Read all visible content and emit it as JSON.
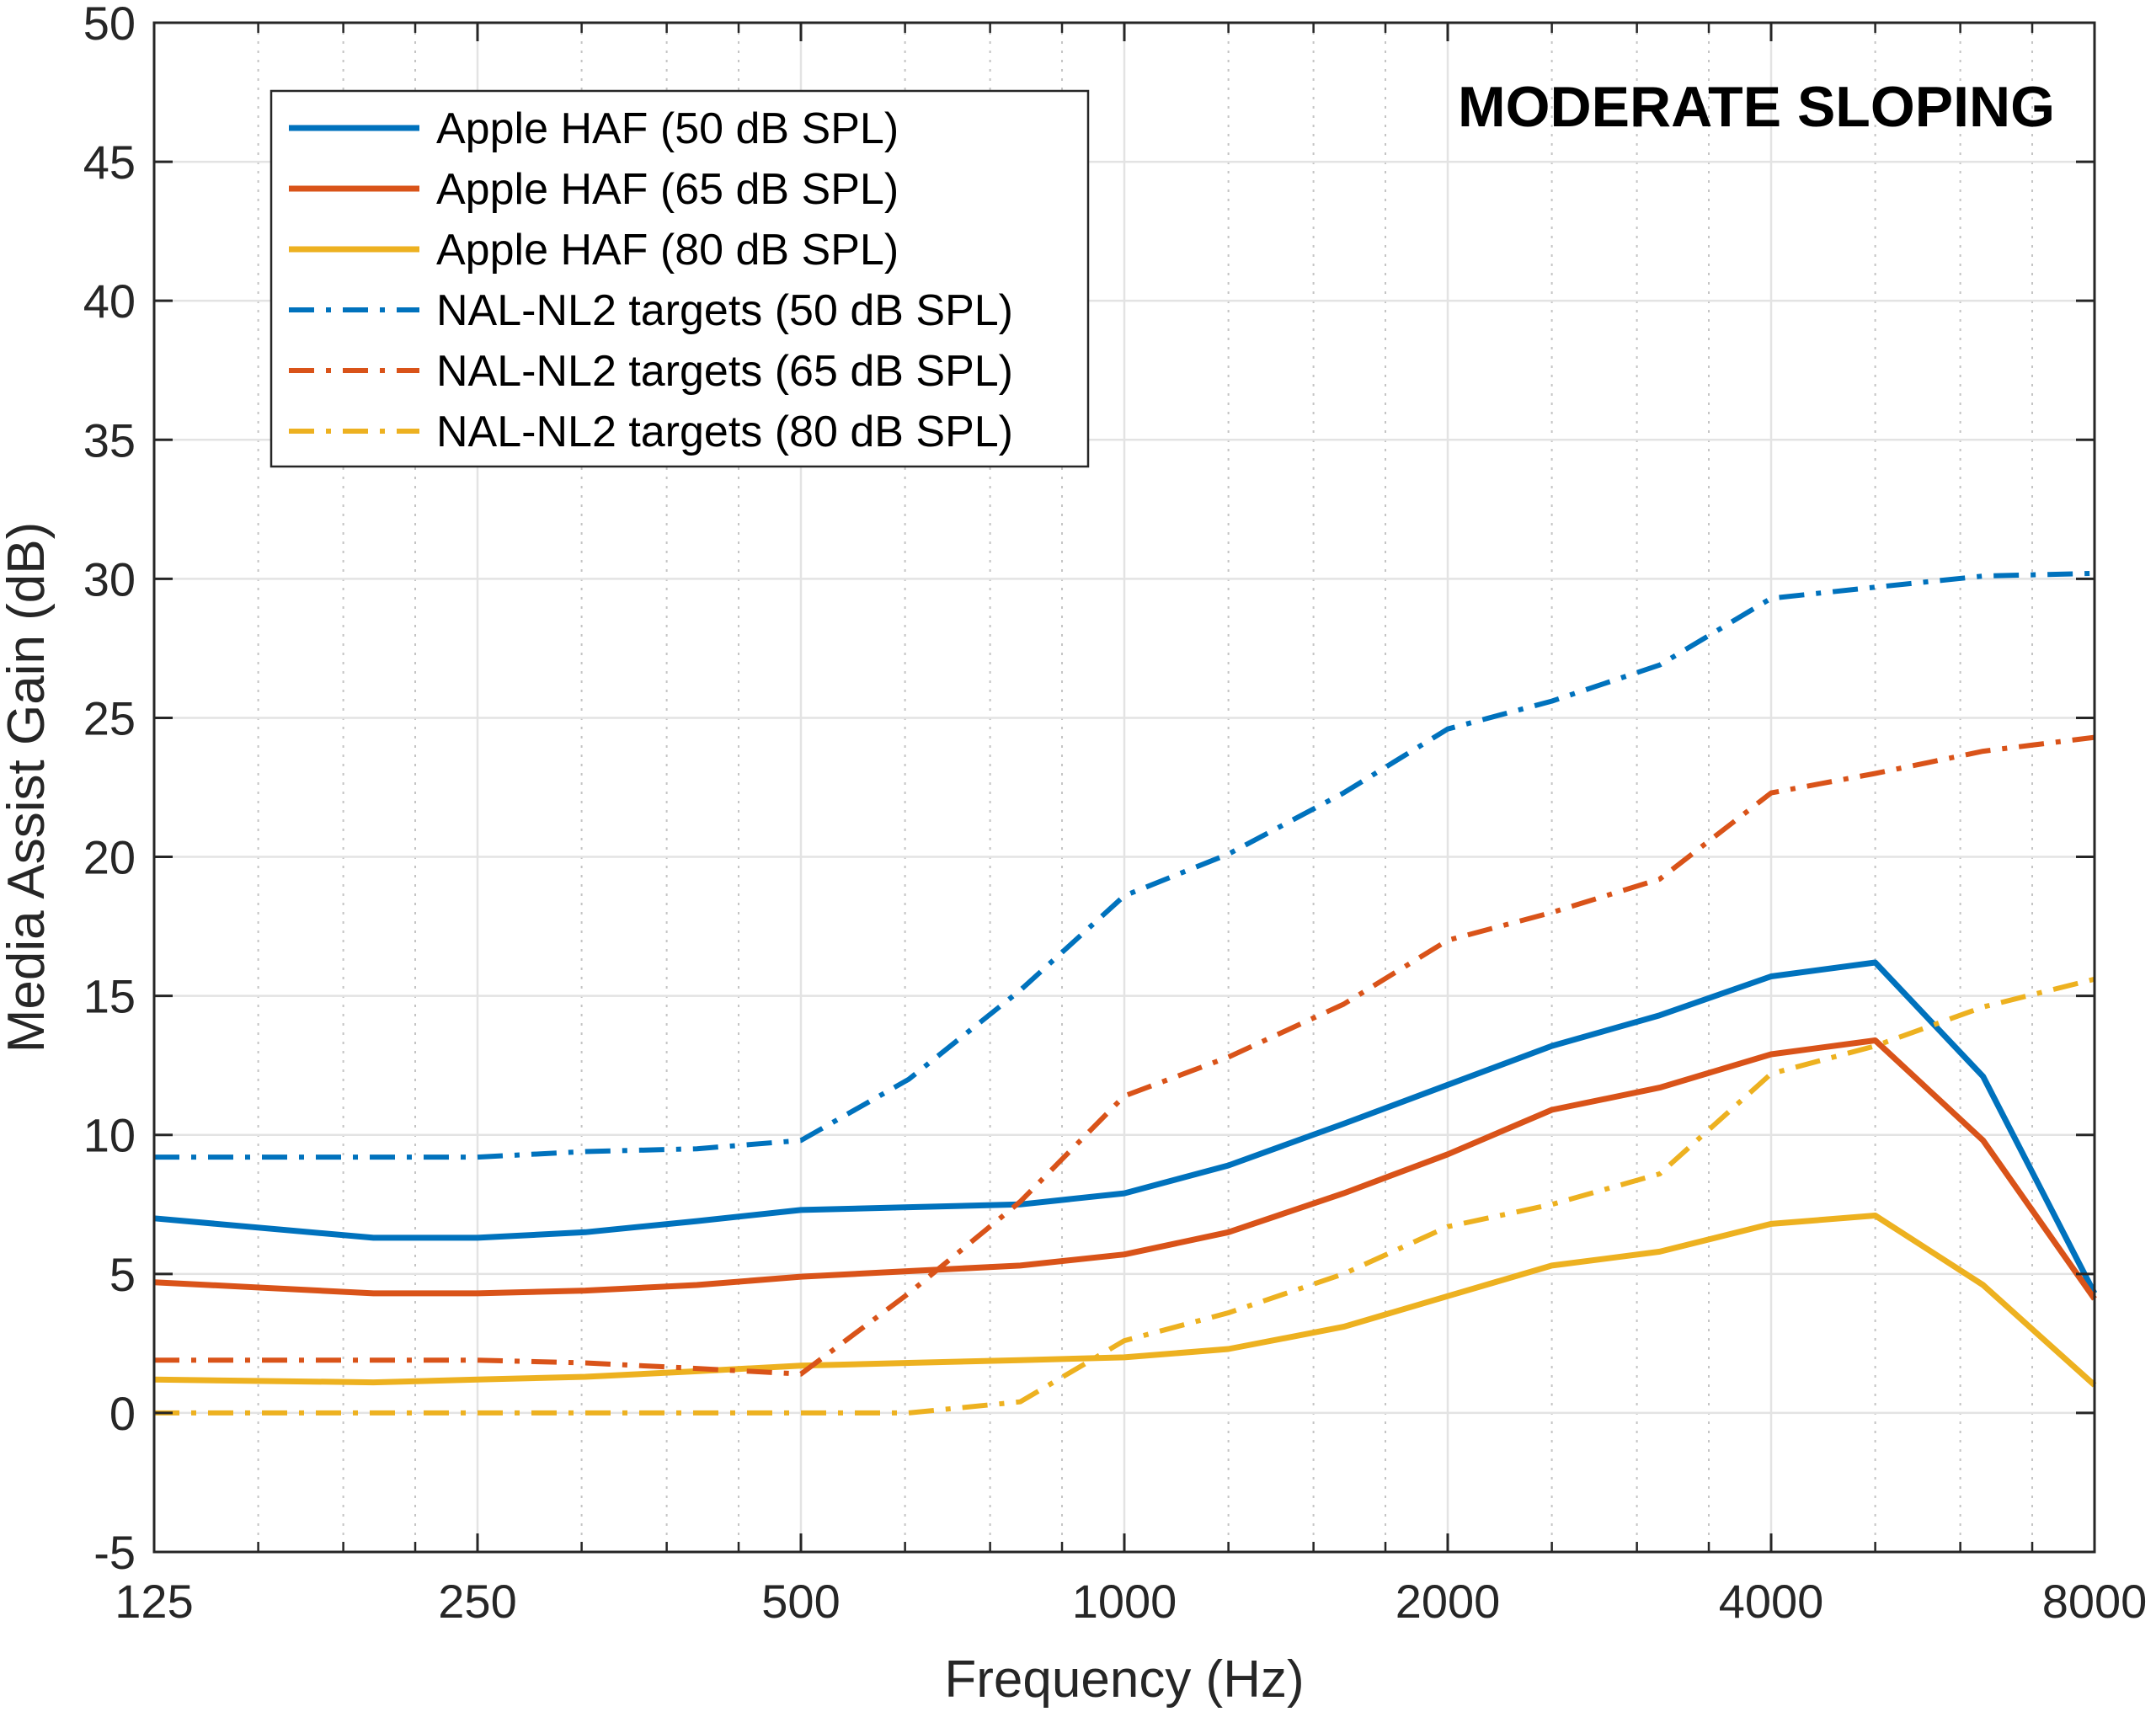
{
  "chart_data": {
    "type": "line",
    "title": "MODERATE SLOPING",
    "xlabel": "Frequency (Hz)",
    "ylabel": "Media Assist Gain (dB)",
    "x_scale": "log2",
    "xlim": [
      125,
      8000
    ],
    "ylim": [
      -5,
      50
    ],
    "x_ticks": [
      125,
      250,
      500,
      1000,
      2000,
      4000,
      8000
    ],
    "x_tick_labels": [
      "125",
      "250",
      "500",
      "1000",
      "2000",
      "4000",
      "8000"
    ],
    "y_ticks": [
      -5,
      0,
      5,
      10,
      15,
      20,
      25,
      30,
      35,
      40,
      45,
      50
    ],
    "y_tick_labels": [
      "-5",
      "0",
      "5",
      "10",
      "15",
      "20",
      "25",
      "30",
      "35",
      "40",
      "45",
      "50"
    ],
    "grid": true,
    "legend_position": "top-left",
    "series": [
      {
        "name": "Apple HAF (50 dB SPL)",
        "color": "#0072BD",
        "style": "solid",
        "x": [
          125,
          200,
          250,
          315,
          400,
          500,
          630,
          800,
          1000,
          1250,
          1600,
          2000,
          2500,
          3150,
          4000,
          5000,
          6300,
          8000
        ],
        "y": [
          7.0,
          6.3,
          6.3,
          6.5,
          6.9,
          7.3,
          7.4,
          7.5,
          7.9,
          8.9,
          10.4,
          11.8,
          13.2,
          14.3,
          15.7,
          16.2,
          12.1,
          4.3
        ]
      },
      {
        "name": "Apple HAF (65 dB SPL)",
        "color": "#D95319",
        "style": "solid",
        "x": [
          125,
          200,
          250,
          315,
          400,
          500,
          630,
          800,
          1000,
          1250,
          1600,
          2000,
          2500,
          3150,
          4000,
          5000,
          6300,
          8000
        ],
        "y": [
          4.7,
          4.3,
          4.3,
          4.4,
          4.6,
          4.9,
          5.1,
          5.3,
          5.7,
          6.5,
          7.9,
          9.3,
          10.9,
          11.7,
          12.9,
          13.4,
          9.8,
          4.1
        ]
      },
      {
        "name": "Apple HAF (80 dB SPL)",
        "color": "#EDB120",
        "style": "solid",
        "x": [
          125,
          200,
          250,
          315,
          400,
          500,
          630,
          800,
          1000,
          1250,
          1600,
          2000,
          2500,
          3150,
          4000,
          5000,
          6300,
          8000
        ],
        "y": [
          1.2,
          1.1,
          1.2,
          1.3,
          1.5,
          1.7,
          1.8,
          1.9,
          2.0,
          2.3,
          3.1,
          4.2,
          5.3,
          5.8,
          6.8,
          7.1,
          4.6,
          1.0
        ]
      },
      {
        "name": "NAL-NL2 targets (50 dB SPL)",
        "color": "#0072BD",
        "style": "dashdot",
        "x": [
          125,
          250,
          315,
          400,
          500,
          630,
          800,
          1000,
          1250,
          1600,
          2000,
          2500,
          3150,
          4000,
          5000,
          6300,
          8000
        ],
        "y": [
          9.2,
          9.2,
          9.4,
          9.5,
          9.8,
          12.0,
          15.2,
          18.6,
          20.1,
          22.3,
          24.6,
          25.6,
          26.9,
          29.3,
          29.7,
          30.1,
          30.2
        ]
      },
      {
        "name": "NAL-NL2 targets (65 dB SPL)",
        "color": "#D95319",
        "style": "dashdot",
        "x": [
          125,
          250,
          315,
          400,
          500,
          630,
          800,
          1000,
          1250,
          1600,
          2000,
          2500,
          3150,
          4000,
          5000,
          6300,
          8000
        ],
        "y": [
          1.9,
          1.9,
          1.8,
          1.6,
          1.4,
          4.3,
          7.6,
          11.4,
          12.8,
          14.7,
          17.0,
          18.0,
          19.2,
          22.3,
          23.0,
          23.8,
          24.3
        ]
      },
      {
        "name": "NAL-NL2 targets (80 dB SPL)",
        "color": "#EDB120",
        "style": "dashdot",
        "x": [
          125,
          250,
          315,
          400,
          500,
          630,
          800,
          1000,
          1250,
          1600,
          2000,
          2500,
          3150,
          4000,
          5000,
          6300,
          8000
        ],
        "y": [
          0.0,
          0.0,
          0.0,
          0.0,
          0.0,
          0.0,
          0.4,
          2.6,
          3.6,
          5.0,
          6.7,
          7.5,
          8.6,
          12.2,
          13.2,
          14.6,
          15.6
        ]
      }
    ]
  }
}
